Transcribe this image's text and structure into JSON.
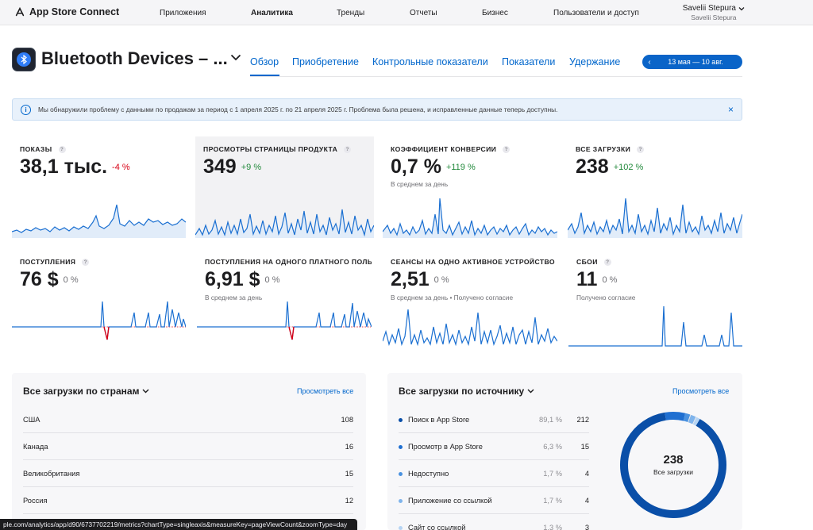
{
  "topnav": {
    "brand": "App Store Connect",
    "items": [
      "Приложения",
      "Аналитика",
      "Тренды",
      "Отчеты",
      "Бизнес",
      "Пользователи и доступ"
    ],
    "active": "Аналитика",
    "user_name": "Savelii Stepura",
    "user_sub": "Savelii Stepura"
  },
  "app": {
    "title": "Bluetooth Devices – ...",
    "tabs": [
      "Обзор",
      "Приобретение",
      "Контрольные показатели",
      "Показатели",
      "Удержание"
    ],
    "active_tab": "Обзор",
    "date_range": "13 мая — 10 авг."
  },
  "alert": {
    "message": "Мы обнаружили проблему с данными по продажам за период с 1 апреля 2025 г. по 21 апреля 2025 г. Проблема была решена, и исправленные данные теперь доступны.",
    "close": "×"
  },
  "metrics": [
    {
      "label": "ПОКАЗЫ",
      "value": "38,1 тыс.",
      "delta": "-4 %",
      "delta_kind": "neg",
      "note": "",
      "color": "#1a6fd1"
    },
    {
      "label": "ПРОСМОТРЫ СТРАНИЦЫ ПРОДУКТА",
      "value": "349",
      "delta": "+9 %",
      "delta_kind": "pos",
      "note": "",
      "color": "#1a6fd1"
    },
    {
      "label": "КОЭФФИЦИЕНТ КОНВЕРСИИ",
      "value": "0,7 %",
      "delta": "+119 %",
      "delta_kind": "pos",
      "note": "В среднем за день",
      "color": "#1a6fd1"
    },
    {
      "label": "ВСЕ ЗАГРУЗКИ",
      "value": "238",
      "delta": "+102 %",
      "delta_kind": "pos",
      "note": "",
      "color": "#1a6fd1"
    },
    {
      "label": "ПОСТУПЛЕНИЯ",
      "value": "76 $",
      "delta": "0 %",
      "delta_kind": "zero",
      "note": "",
      "color": "#1a6fd1"
    },
    {
      "label": "ПОСТУПЛЕНИЯ НА ОДНОГО ПЛАТНОГО ПОЛЬЗ",
      "value": "6,91 $",
      "delta": "0 %",
      "delta_kind": "zero",
      "note": "В среднем за день",
      "color": "#1a6fd1"
    },
    {
      "label": "СЕАНСЫ НА ОДНО АКТИВНОЕ УСТРОЙСТВО",
      "value": "2,51",
      "delta": "0 %",
      "delta_kind": "zero",
      "note": "В среднем за день • Получено согласие",
      "color": "#1a6fd1"
    },
    {
      "label": "СБОИ",
      "value": "11",
      "delta": "0 %",
      "delta_kind": "zero",
      "note": "Получено согласие",
      "color": "#1a6fd1"
    }
  ],
  "countries": {
    "title": "Все загрузки по странам",
    "see_all": "Просмотреть все",
    "rows": [
      {
        "name": "США",
        "value": "108"
      },
      {
        "name": "Канада",
        "value": "16"
      },
      {
        "name": "Великобритания",
        "value": "15"
      },
      {
        "name": "Россия",
        "value": "12"
      }
    ]
  },
  "sources": {
    "title": "Все загрузки по источнику",
    "see_all": "Просмотреть все",
    "rows": [
      {
        "name": "Поиск в App Store",
        "pct": "89,1 %",
        "value": "212",
        "color": "#0a4fa8"
      },
      {
        "name": "Просмотр в App Store",
        "pct": "6,3 %",
        "value": "15",
        "color": "#1f6fd1"
      },
      {
        "name": "Недоступно",
        "pct": "1,7 %",
        "value": "4",
        "color": "#4a92e0"
      },
      {
        "name": "Приложение со ссылкой",
        "pct": "1,7 %",
        "value": "4",
        "color": "#7fb4ec"
      },
      {
        "name": "Сайт со ссылкой",
        "pct": "1,3 %",
        "value": "3",
        "color": "#b5d4f4"
      }
    ],
    "total": "238",
    "total_label": "Все загрузки"
  },
  "statusbar": {
    "url": "ple.com/analytics/app/d90/6737702219/metrics?chartType=singleaxis&measureKey=pageViewCount&zoomType=day"
  }
}
